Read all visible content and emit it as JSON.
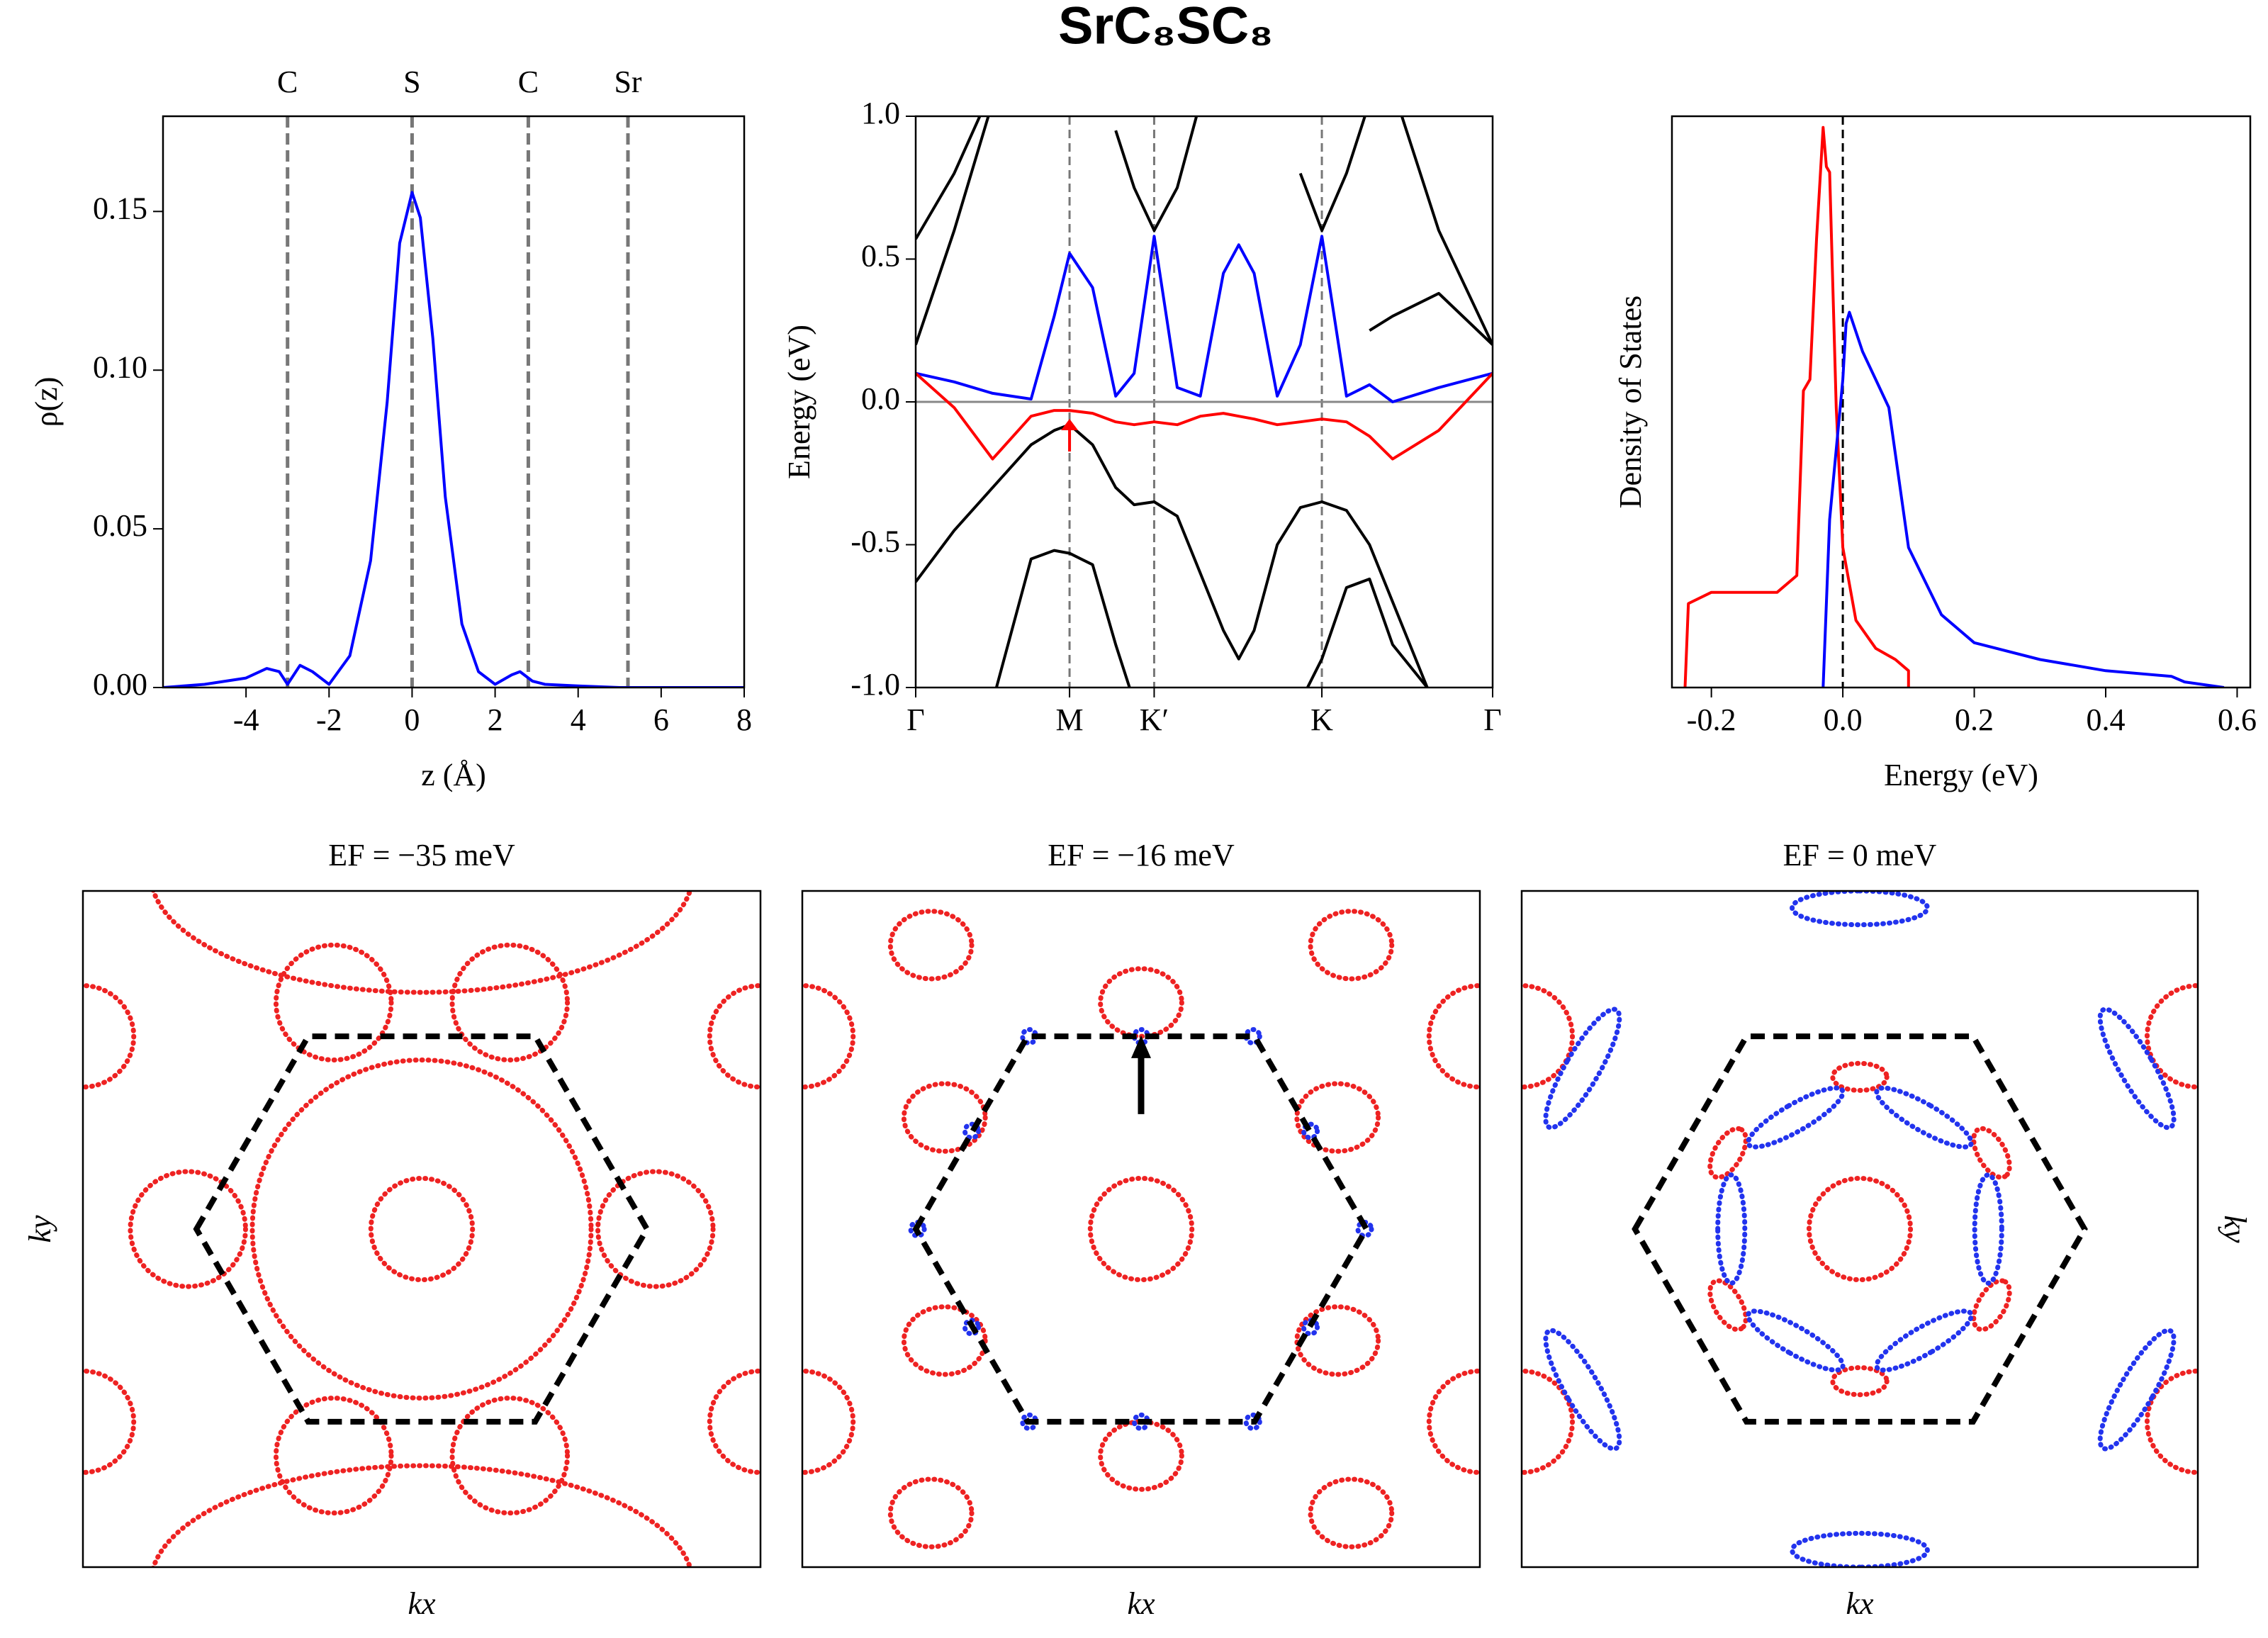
{
  "title": "SrC₈SC₈",
  "chart_data": [
    {
      "type": "line",
      "xlabel": "z (Å)",
      "ylabel": "ρ(z)",
      "xlim": [
        -6,
        8
      ],
      "ylim": [
        0,
        0.18
      ],
      "xticks": [
        -4,
        -2,
        0,
        2,
        4,
        6,
        8
      ],
      "yticks": [
        {
          "value": 0,
          "label": "0.00"
        },
        {
          "value": 0.05,
          "label": "0.05"
        },
        {
          "value": 0.1,
          "label": "0.10"
        },
        {
          "value": 0.15,
          "label": "0.15"
        }
      ],
      "markers": {
        "labels": [
          "C",
          "S",
          "C",
          "Sr"
        ],
        "x": [
          -3,
          0,
          2.8,
          5.2
        ]
      },
      "x": [
        -6,
        -5,
        -4,
        -3.5,
        -3.2,
        -3,
        -2.7,
        -2.4,
        -2,
        -1.5,
        -1,
        -0.6,
        -0.3,
        0,
        0.2,
        0.5,
        0.8,
        1.2,
        1.6,
        2,
        2.4,
        2.6,
        2.9,
        3.2,
        4,
        5,
        6,
        8
      ],
      "series": [
        {
          "color": "#0000ff",
          "values": [
            0,
            0.001,
            0.003,
            0.006,
            0.005,
            0.001,
            0.007,
            0.005,
            0.001,
            0.01,
            0.04,
            0.09,
            0.14,
            0.156,
            0.148,
            0.11,
            0.06,
            0.02,
            0.005,
            0.001,
            0.004,
            0.005,
            0.002,
            0.001,
            0.0005,
            0,
            0,
            0
          ]
        }
      ]
    },
    {
      "type": "line",
      "ylabel": "Energy (eV)",
      "xlim": [
        0,
        3.75
      ],
      "ylim": [
        -1,
        1
      ],
      "xticks": [
        {
          "value": 0,
          "label": "Γ"
        },
        {
          "value": 1.0,
          "label": "M"
        },
        {
          "value": 1.55,
          "label": "K′"
        },
        {
          "value": 2.64,
          "label": "K"
        },
        {
          "value": 3.75,
          "label": "Γ"
        }
      ],
      "xtick_guides": true,
      "yticks": [
        {
          "value": -1,
          "label": "-1.0"
        },
        {
          "value": -0.5,
          "label": "-0.5"
        },
        {
          "value": 0,
          "label": "0.0"
        },
        {
          "value": 0.5,
          "label": "0.5"
        },
        {
          "value": 1,
          "label": "1.0"
        }
      ],
      "hlines": [
        0
      ],
      "x": [
        0,
        0.25,
        0.5,
        0.75,
        0.9,
        1.0,
        1.15,
        1.3,
        1.42,
        1.55,
        1.7,
        1.85,
        2.0,
        2.1,
        2.2,
        2.35,
        2.5,
        2.64,
        2.8,
        2.95,
        3.1,
        3.4,
        3.75
      ],
      "series": [
        {
          "color": "#000000",
          "values": [
            -0.63,
            -0.45,
            -0.3,
            -0.15,
            -0.1,
            -0.08,
            -0.15,
            -0.3,
            -0.36,
            -0.35,
            -0.4,
            -0.6,
            -0.8,
            -0.9,
            -0.8,
            -0.5,
            -0.37,
            -0.35,
            -0.38,
            -0.5,
            -0.7,
            -1.1,
            null
          ]
        },
        {
          "color": "#000000",
          "values": [
            0.2,
            0.6,
            1.05,
            null,
            null,
            null,
            null,
            null,
            null,
            null,
            null,
            null,
            null,
            null,
            null,
            null,
            null,
            null,
            null,
            null,
            1.1,
            0.6,
            0.2
          ]
        },
        {
          "color": "#000000",
          "values": [
            0.57,
            0.8,
            1.1,
            null,
            null,
            null,
            null,
            0.95,
            0.75,
            0.6,
            0.75,
            1.05,
            null,
            null,
            null,
            null,
            0.8,
            0.6,
            0.8,
            1.05,
            null,
            null,
            null
          ]
        },
        {
          "color": "#000000",
          "values": [
            null,
            null,
            null,
            null,
            null,
            null,
            null,
            null,
            null,
            null,
            null,
            null,
            null,
            null,
            null,
            null,
            null,
            null,
            null,
            0.25,
            0.3,
            0.38,
            0.2
          ]
        },
        {
          "color": "#000000",
          "values": [
            null,
            null,
            -1.05,
            -0.55,
            -0.52,
            -0.53,
            -0.57,
            -0.85,
            -1.05,
            null,
            null,
            null,
            null,
            null,
            null,
            null,
            null,
            null,
            null,
            null,
            null,
            null,
            null
          ]
        },
        {
          "color": "#000000",
          "values": [
            null,
            null,
            null,
            null,
            null,
            null,
            null,
            null,
            null,
            null,
            null,
            null,
            null,
            null,
            null,
            null,
            -1.05,
            -0.9,
            -0.65,
            -0.62,
            -0.85,
            -1.05,
            null
          ]
        },
        {
          "color": "#0000ff",
          "values": [
            0.1,
            0.07,
            0.03,
            0.01,
            0.3,
            0.52,
            0.4,
            0.02,
            0.1,
            0.58,
            0.05,
            0.02,
            0.45,
            0.55,
            0.45,
            0.02,
            0.2,
            0.58,
            0.02,
            0.06,
            0.0,
            0.05,
            0.1
          ]
        },
        {
          "color": "#ff0000",
          "values": [
            0.1,
            -0.02,
            -0.2,
            -0.05,
            -0.03,
            -0.03,
            -0.04,
            -0.07,
            -0.08,
            -0.07,
            -0.08,
            -0.05,
            -0.04,
            -0.05,
            -0.06,
            -0.08,
            -0.07,
            -0.06,
            -0.07,
            -0.12,
            -0.2,
            -0.1,
            0.1
          ]
        }
      ]
    },
    {
      "type": "line",
      "xlabel": "Energy (eV)",
      "ylabel": "Density of States",
      "xlim": [
        -0.26,
        0.62
      ],
      "ylim": [
        0,
        1.02
      ],
      "xticks": [
        -0.2,
        {
          "value": 0,
          "label": "0.0"
        },
        0.2,
        0.4,
        0.6
      ],
      "vlines": [
        0
      ],
      "series": [
        {
          "color": "#ff0000",
          "x": [
            -0.24,
            -0.235,
            -0.2,
            -0.15,
            -0.1,
            -0.07,
            -0.06,
            -0.05,
            -0.04,
            -0.03,
            -0.025,
            -0.02,
            -0.01,
            0,
            0.02,
            0.05,
            0.08,
            0.1,
            0.1
          ],
          "values": [
            0,
            0.15,
            0.17,
            0.17,
            0.17,
            0.2,
            0.53,
            0.55,
            0.8,
            1.0,
            0.93,
            0.92,
            0.5,
            0.25,
            0.12,
            0.07,
            0.05,
            0.03,
            0
          ]
        },
        {
          "color": "#0000ff",
          "x": [
            -0.03,
            -0.02,
            0,
            0.005,
            0.01,
            0.03,
            0.05,
            0.07,
            0.1,
            0.15,
            0.2,
            0.3,
            0.4,
            0.5,
            0.52,
            0.58
          ],
          "values": [
            0,
            0.3,
            0.55,
            0.65,
            0.67,
            0.6,
            0.55,
            0.5,
            0.25,
            0.13,
            0.08,
            0.05,
            0.03,
            0.02,
            0.01,
            0
          ]
        }
      ]
    },
    {
      "type": "contour",
      "title": "EF = −35 meV",
      "xlabel": "kx",
      "ylabel": "ky",
      "ylabel_side": "left",
      "xlim": [
        -1,
        1
      ],
      "ylim": [
        -1,
        1
      ],
      "bz": {
        "x": [
          -0.665,
          -0.335,
          0.335,
          0.665,
          0.335,
          -0.335
        ],
        "y": [
          0,
          0.57,
          0.57,
          0,
          -0.57,
          -0.57
        ]
      },
      "series": [
        {
          "color": "#ee2222",
          "ellipses": [
            [
              0,
              0,
              0.15,
              0.15,
              0
            ],
            [
              0,
              0,
              0.5,
              0.5,
              0
            ],
            [
              -0.26,
              0.67,
              0.17,
              0.17,
              0
            ],
            [
              0.26,
              0.67,
              0.17,
              0.17,
              0
            ],
            [
              -0.69,
              0,
              0.17,
              0.17,
              0
            ],
            [
              0.69,
              0,
              0.17,
              0.17,
              0
            ],
            [
              -0.26,
              -0.67,
              0.17,
              0.17,
              0
            ],
            [
              0.26,
              -0.67,
              0.17,
              0.17,
              0
            ],
            [
              -1,
              0.57,
              0.15,
              0.15,
              0
            ],
            [
              1,
              0.57,
              0.15,
              0.15,
              0
            ],
            [
              -1,
              -0.57,
              0.15,
              0.15,
              0
            ],
            [
              1,
              -0.57,
              0.15,
              0.15,
              0
            ],
            [
              0,
              1.05,
              0.8,
              0.35,
              0
            ],
            [
              0,
              -1.05,
              0.8,
              0.35,
              0
            ]
          ]
        }
      ]
    },
    {
      "type": "contour",
      "title": "EF = −16 meV",
      "xlabel": "kx",
      "xlim": [
        -1,
        1
      ],
      "ylim": [
        -1,
        1
      ],
      "bz": {
        "x": [
          -0.665,
          -0.335,
          0.335,
          0.665,
          0.335,
          -0.335
        ],
        "y": [
          0,
          0.57,
          0.57,
          0,
          -0.57,
          -0.57
        ]
      },
      "arrow": true,
      "series": [
        {
          "color": "#ee2222",
          "ellipses": [
            [
              0,
              0,
              0.15,
              0.15,
              0
            ],
            [
              0,
              0.67,
              0.12,
              0.1,
              0
            ],
            [
              0.58,
              0.33,
              0.12,
              0.1,
              0
            ],
            [
              0.58,
              -0.33,
              0.12,
              0.1,
              0
            ],
            [
              0,
              -0.67,
              0.12,
              0.1,
              0
            ],
            [
              -0.58,
              0.33,
              0.12,
              0.1,
              0
            ],
            [
              -0.58,
              -0.33,
              0.12,
              0.1,
              0
            ],
            [
              -0.62,
              0.84,
              0.12,
              0.1,
              0
            ],
            [
              0.62,
              0.84,
              0.12,
              0.1,
              0
            ],
            [
              -0.62,
              -0.84,
              0.12,
              0.1,
              0
            ],
            [
              0.62,
              -0.84,
              0.12,
              0.1,
              0
            ],
            [
              -1,
              0.57,
              0.15,
              0.15,
              0
            ],
            [
              1,
              0.57,
              0.15,
              0.15,
              0
            ],
            [
              -1,
              -0.57,
              0.15,
              0.15,
              0
            ],
            [
              1,
              -0.57,
              0.15,
              0.15,
              0
            ]
          ]
        },
        {
          "color": "#2233ee",
          "ellipses": [
            [
              -0.33,
              0.57,
              0.02,
              0.02,
              0
            ],
            [
              0.33,
              0.57,
              0.02,
              0.02,
              0
            ],
            [
              -0.33,
              -0.57,
              0.02,
              0.02,
              0
            ],
            [
              0.33,
              -0.57,
              0.02,
              0.02,
              0
            ],
            [
              -0.66,
              0,
              0.02,
              0.02,
              0
            ],
            [
              0.66,
              0,
              0.02,
              0.02,
              0
            ],
            [
              -0.5,
              0.29,
              0.02,
              0.02,
              0
            ],
            [
              0.5,
              0.29,
              0.02,
              0.02,
              0
            ],
            [
              -0.5,
              -0.29,
              0.02,
              0.02,
              0
            ],
            [
              0.5,
              -0.29,
              0.02,
              0.02,
              0
            ],
            [
              0,
              0.57,
              0.02,
              0.02,
              0
            ],
            [
              0,
              -0.57,
              0.02,
              0.02,
              0
            ]
          ]
        }
      ]
    },
    {
      "type": "contour",
      "title": "EF = 0 meV",
      "xlabel": "kx",
      "ylabel": "ky",
      "ylabel_side": "right",
      "xlim": [
        -1,
        1
      ],
      "ylim": [
        -1,
        1
      ],
      "bz": {
        "x": [
          -0.665,
          -0.335,
          0.335,
          0.665,
          0.335,
          -0.335
        ],
        "y": [
          0,
          0.57,
          0.57,
          0,
          -0.57,
          -0.57
        ]
      },
      "series": [
        {
          "color": "#ee2222",
          "ellipses": [
            [
              0,
              0,
              0.15,
              0.15,
              0
            ],
            [
              0,
              0.45,
              0.08,
              0.04,
              0
            ],
            [
              0.39,
              0.225,
              0.08,
              0.04,
              -60
            ],
            [
              0.39,
              -0.225,
              0.08,
              0.04,
              60
            ],
            [
              0,
              -0.45,
              0.08,
              0.04,
              0
            ],
            [
              -0.39,
              -0.225,
              0.08,
              0.04,
              -60
            ],
            [
              -0.39,
              0.225,
              0.08,
              0.04,
              60
            ],
            [
              -1,
              0.57,
              0.15,
              0.15,
              0
            ],
            [
              1,
              0.57,
              0.15,
              0.15,
              0
            ],
            [
              -1,
              -0.57,
              0.15,
              0.15,
              0
            ],
            [
              1,
              -0.57,
              0.15,
              0.15,
              0
            ]
          ]
        },
        {
          "color": "#2233ee",
          "ellipses": [
            [
              0.38,
              0,
              0.04,
              0.16,
              0
            ],
            [
              0.19,
              0.33,
              0.04,
              0.16,
              60
            ],
            [
              -0.19,
              0.33,
              0.04,
              0.16,
              120
            ],
            [
              -0.38,
              0,
              0.04,
              0.16,
              180
            ],
            [
              -0.19,
              -0.33,
              0.04,
              0.16,
              240
            ],
            [
              0.19,
              -0.33,
              0.04,
              0.16,
              300
            ],
            [
              0.82,
              0.475,
              0.05,
              0.2,
              30
            ],
            [
              0,
              0.95,
              0.05,
              0.2,
              90
            ],
            [
              -0.82,
              0.475,
              0.05,
              0.2,
              150
            ],
            [
              -0.82,
              -0.475,
              0.05,
              0.2,
              210
            ],
            [
              0,
              -0.95,
              0.05,
              0.2,
              270
            ],
            [
              0.82,
              -0.475,
              0.05,
              0.2,
              330
            ]
          ]
        }
      ]
    }
  ]
}
